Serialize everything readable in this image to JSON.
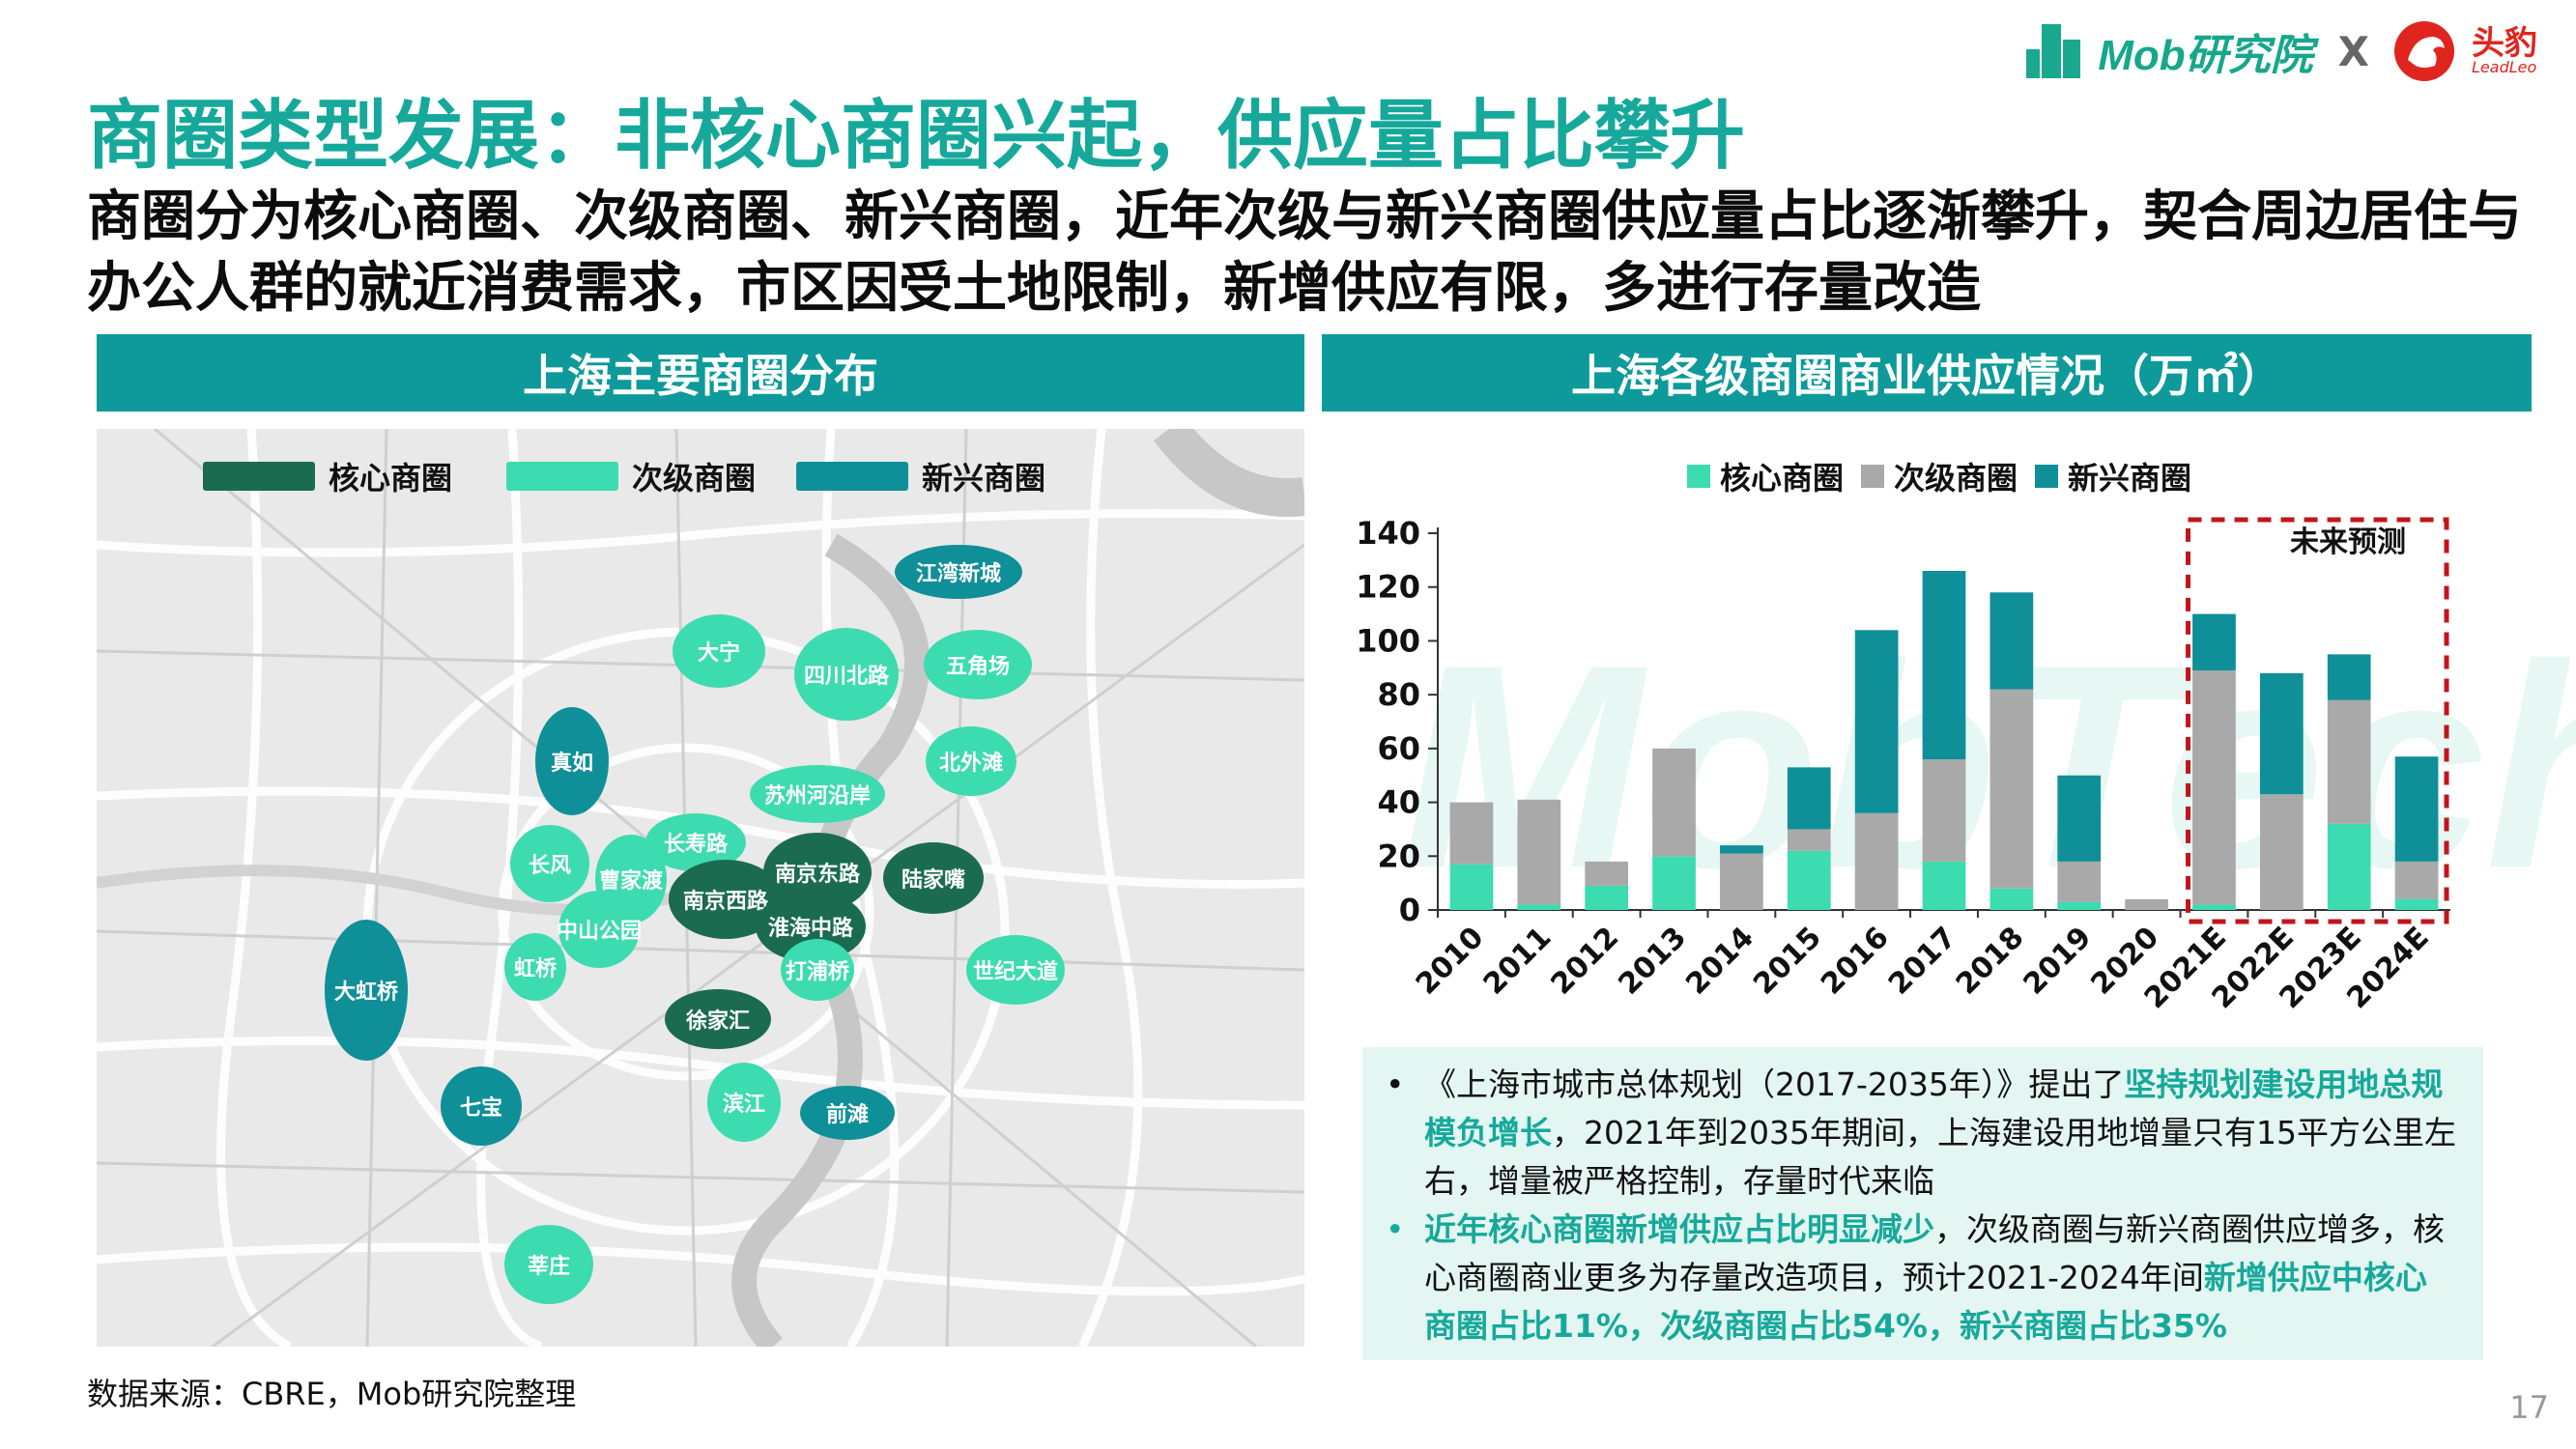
{
  "header": {
    "title": "商圈类型发展：非核心商圈兴起，供应量占比攀升",
    "subtitle": "商圈分为核心商圈、次级商圈、新兴商圈，近年次级与新兴商圈供应量占比逐渐攀升，契合周边居住与办公人群的就近消费需求，市区因受土地限制，新增供应有限，多进行存量改造"
  },
  "logo": {
    "mob": "Mob研究院",
    "x": "X",
    "leadleo_cn": "头豹",
    "leadleo_en": "LeadLeo"
  },
  "colors": {
    "core": "#1a6b50",
    "secondary": "#3ddbb0",
    "emerging": "#0f8f98",
    "gray": "#a9a9a9",
    "accent": "#16a99b",
    "forecast_box": "#c0161b"
  },
  "map": {
    "heading": "上海主要商圈分布",
    "legend": [
      {
        "label": "核心商圈",
        "type": "core"
      },
      {
        "label": "次级商圈",
        "type": "secondary"
      },
      {
        "label": "新兴商圈",
        "type": "emerging"
      }
    ],
    "districts": [
      {
        "name": "江湾新城",
        "type": "emerging"
      },
      {
        "name": "大宁",
        "type": "secondary"
      },
      {
        "name": "四川北路",
        "type": "secondary"
      },
      {
        "name": "五角场",
        "type": "secondary"
      },
      {
        "name": "真如",
        "type": "emerging"
      },
      {
        "name": "北外滩",
        "type": "secondary"
      },
      {
        "name": "苏州河沿岸",
        "type": "secondary"
      },
      {
        "name": "长寿路",
        "type": "secondary"
      },
      {
        "name": "长风",
        "type": "secondary"
      },
      {
        "name": "曹家渡",
        "type": "secondary"
      },
      {
        "name": "南京东路",
        "type": "core"
      },
      {
        "name": "陆家嘴",
        "type": "core"
      },
      {
        "name": "南京西路",
        "type": "core"
      },
      {
        "name": "淮海中路",
        "type": "core"
      },
      {
        "name": "中山公园",
        "type": "secondary"
      },
      {
        "name": "大虹桥",
        "type": "emerging"
      },
      {
        "name": "虹桥",
        "type": "secondary"
      },
      {
        "name": "打浦桥",
        "type": "secondary"
      },
      {
        "name": "世纪大道",
        "type": "secondary"
      },
      {
        "name": "徐家汇",
        "type": "core"
      },
      {
        "name": "七宝",
        "type": "emerging"
      },
      {
        "name": "滨江",
        "type": "secondary"
      },
      {
        "name": "前滩",
        "type": "emerging"
      },
      {
        "name": "莘庄",
        "type": "secondary"
      }
    ]
  },
  "chart_heading": "上海各级商圈商业供应情况（万㎡）",
  "chart_data": {
    "type": "bar",
    "stacked": true,
    "categories": [
      "2010",
      "2011",
      "2012",
      "2013",
      "2014",
      "2015",
      "2016",
      "2017",
      "2018",
      "2019",
      "2020",
      "2021E",
      "2022E",
      "2023E",
      "2024E"
    ],
    "series": [
      {
        "name": "核心商圈",
        "color": "#3ddbb0",
        "values": [
          17,
          2,
          9,
          20,
          0,
          22,
          0,
          18,
          8,
          3,
          0,
          2,
          0,
          32,
          4
        ]
      },
      {
        "name": "次级商圈",
        "color": "#a9a9a9",
        "values": [
          23,
          39,
          9,
          40,
          21,
          8,
          36,
          38,
          74,
          15,
          4,
          87,
          43,
          46,
          14
        ]
      },
      {
        "name": "新兴商圈",
        "color": "#0f8f98",
        "values": [
          0,
          0,
          0,
          0,
          3,
          23,
          68,
          70,
          36,
          32,
          0,
          21,
          45,
          17,
          39
        ]
      }
    ],
    "ylim": [
      0,
      140
    ],
    "yticks": [
      0,
      20,
      40,
      60,
      80,
      100,
      120,
      140
    ],
    "forecast_label": "未来预测",
    "forecast_range": [
      "2021E",
      "2024E"
    ],
    "legend_position": "top-center",
    "grid": false
  },
  "notes": {
    "n1_a": "《上海市城市总体规划（2017-2035年）》提出了",
    "n1_hl": "坚持规划建设用地总规模负增长",
    "n1_b": "，2021年到2035年期间，上海建设用地增量只有15平方公里左右，增量被严格控制，存量时代来临",
    "n2_hl1": "近年核心商圈新增供应占比明显减少",
    "n2_a": "，次级商圈与新兴商圈供应增多，核心商圈商业更多为存量改造项目，预计2021-2024年间",
    "n2_hl2": "新增供应中核心商圈占比11%，次级商圈占比54%，新兴商圈占比35%"
  },
  "watermark": "MobTech",
  "source": "数据来源：CBRE，Mob研究院整理",
  "page_number": "17"
}
